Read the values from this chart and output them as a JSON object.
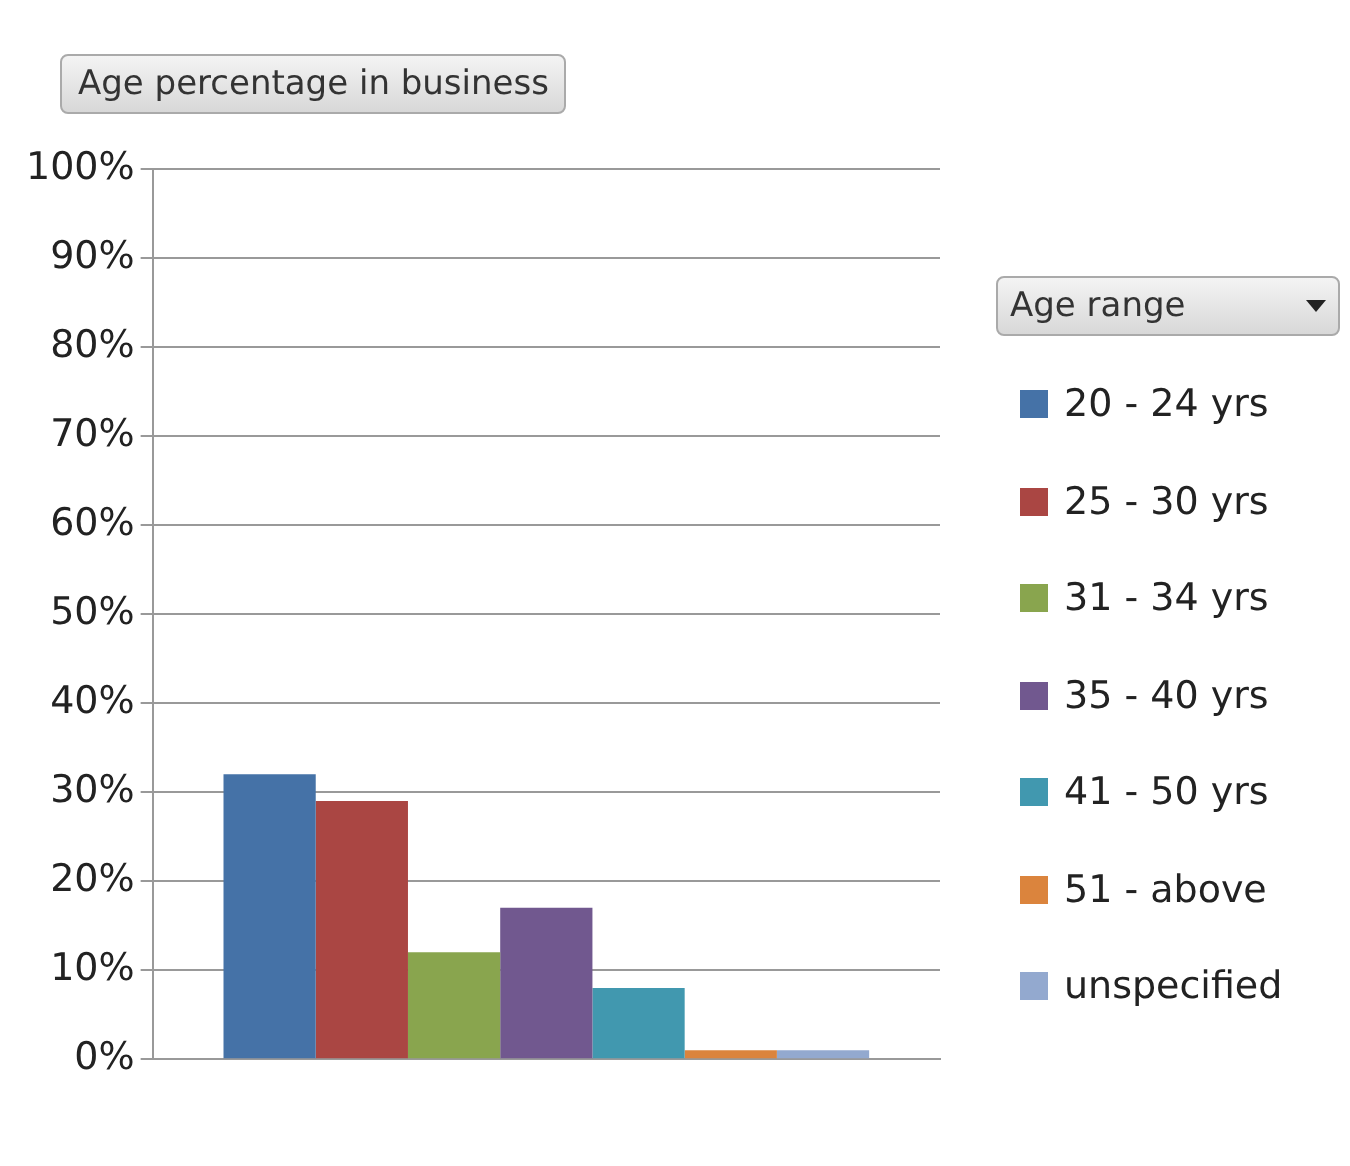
{
  "chart_data": {
    "type": "bar",
    "title": "Age percentage in business",
    "legend_title": "Age range",
    "categories": [
      null
    ],
    "series": [
      {
        "name": "20 - 24 yrs",
        "color": "#4572a7",
        "values": [
          32
        ]
      },
      {
        "name": "25 - 30 yrs",
        "color": "#aa4643",
        "values": [
          29
        ]
      },
      {
        "name": "31 - 34 yrs",
        "color": "#89a54e",
        "values": [
          12
        ]
      },
      {
        "name": "35 - 40 yrs",
        "color": "#71588f",
        "values": [
          17
        ]
      },
      {
        "name": "41 - 50 yrs",
        "color": "#4198af",
        "values": [
          8
        ]
      },
      {
        "name": "51 - above",
        "color": "#db843d",
        "values": [
          1
        ]
      },
      {
        "name": "unspecified",
        "color": "#93a9cf",
        "values": [
          1
        ]
      }
    ],
    "ylim": [
      0,
      100
    ],
    "yticks": [
      {
        "value": 0,
        "label": "0%"
      },
      {
        "value": 10,
        "label": "10%"
      },
      {
        "value": 20,
        "label": "20%"
      },
      {
        "value": 30,
        "label": "30%"
      },
      {
        "value": 40,
        "label": "40%"
      },
      {
        "value": 50,
        "label": "50%"
      },
      {
        "value": 60,
        "label": "60%"
      },
      {
        "value": 70,
        "label": "70%"
      },
      {
        "value": 80,
        "label": "80%"
      },
      {
        "value": 90,
        "label": "90%"
      },
      {
        "value": 100,
        "label": "100%"
      }
    ],
    "grid": "y",
    "legend": "right"
  }
}
